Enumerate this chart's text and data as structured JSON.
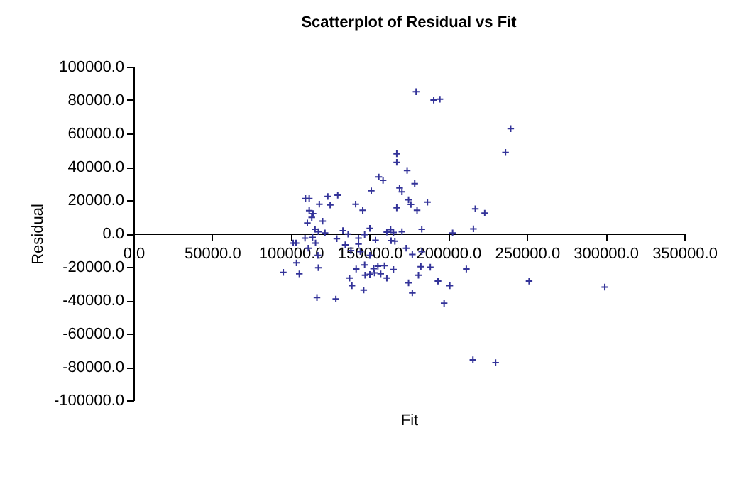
{
  "chart_data": {
    "type": "scatter",
    "title": "Scatterplot of Residual vs Fit",
    "xlabel": "Fit",
    "ylabel": "Residual",
    "marker": "cross",
    "grid": false,
    "xlim": [
      0,
      350000
    ],
    "ylim": [
      -100000,
      100000
    ],
    "xticks": [
      {
        "value": 0,
        "label": "0.0"
      },
      {
        "value": 50000,
        "label": "50000.0"
      },
      {
        "value": 100000,
        "label": "100000.0"
      },
      {
        "value": 150000,
        "label": "150000.0"
      },
      {
        "value": 200000,
        "label": "200000.0"
      },
      {
        "value": 250000,
        "label": "250000.0"
      },
      {
        "value": 300000,
        "label": "300000.0"
      },
      {
        "value": 350000,
        "label": "350000.0"
      }
    ],
    "yticks": [
      {
        "value": -100000,
        "label": "-100000.0"
      },
      {
        "value": -80000,
        "label": "-80000.0"
      },
      {
        "value": -60000,
        "label": "-60000.0"
      },
      {
        "value": -40000,
        "label": "-40000.0"
      },
      {
        "value": -20000,
        "label": "-20000.0"
      },
      {
        "value": 0,
        "label": "0.0"
      },
      {
        "value": 20000,
        "label": "20000.0"
      },
      {
        "value": 40000,
        "label": "40000.0"
      },
      {
        "value": 60000,
        "label": "60000.0"
      },
      {
        "value": 80000,
        "label": "80000.0"
      },
      {
        "value": 100000,
        "label": "100000.0"
      }
    ],
    "series": [
      {
        "color": "#333399",
        "x": [
          179600,
          190800,
          194700,
          239700,
          236400,
          167300,
          167300,
          173900,
          178700,
          155900,
          158600,
          169100,
          170600,
          151100,
          174800,
          176300,
          186800,
          109300,
          111700,
          123500,
          129800,
          125000,
          118100,
          141200,
          145700,
          167300,
          180200,
          217200,
          223200,
          111700,
          114100,
          113300,
          110500,
          120200,
          216000,
          202800,
          183200,
          163400,
          161000,
          165200,
          170600,
          133100,
          136400,
          115400,
          117500,
          121700,
          150200,
          146900,
          101500,
          103300,
          109000,
          115700,
          111100,
          129200,
          134600,
          143000,
          143000,
          153800,
          163700,
          166100,
          173300,
          177200,
          183200,
          138200,
          144200,
          150200,
          103600,
          117500,
          141500,
          146900,
          152600,
          155300,
          159500,
          165200,
          95200,
          105400,
          147200,
          150200,
          153200,
          157100,
          161000,
          137300,
          138800,
          146300,
          174800,
          177200,
          181100,
          182600,
          188600,
          193500,
          201000,
          197400,
          211500,
          116600,
          128600,
          251400,
          299500,
          215700,
          230100,
          113800,
          117200
        ],
        "values": [
          85000,
          80000,
          80500,
          62900,
          48600,
          47800,
          42700,
          37800,
          29900,
          33900,
          31900,
          27300,
          25000,
          25600,
          20200,
          17400,
          18800,
          21000,
          21000,
          22200,
          23000,
          17100,
          17600,
          17600,
          13900,
          15400,
          13900,
          14800,
          12200,
          13700,
          11900,
          9700,
          6300,
          7400,
          2800,
          300,
          2600,
          2300,
          900,
          600,
          1100,
          1700,
          -300,
          2600,
          1100,
          300,
          3100,
          -600,
          -5700,
          -5700,
          -2800,
          -5700,
          -8800,
          -3100,
          -6800,
          -2800,
          -6300,
          -4000,
          -4300,
          -4600,
          -8800,
          -12500,
          -10800,
          -10200,
          -10800,
          -13100,
          -17600,
          -20500,
          -21300,
          -18800,
          -21100,
          -19600,
          -19300,
          -21600,
          -23300,
          -24200,
          -25000,
          -24500,
          -23600,
          -24200,
          -26700,
          -26700,
          -31300,
          -33900,
          -29600,
          -35600,
          -25000,
          -19900,
          -20200,
          -28500,
          -31300,
          -41800,
          -21300,
          -38400,
          -39300,
          -28500,
          -32100,
          -75700,
          -77400,
          -2300,
          -13100
        ]
      }
    ]
  }
}
